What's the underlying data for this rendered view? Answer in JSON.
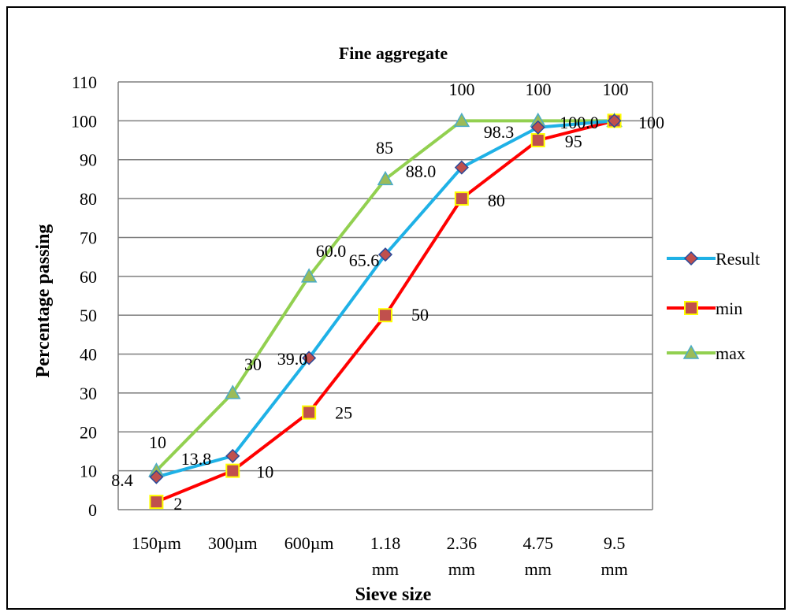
{
  "chart_data": {
    "type": "line",
    "title": "Fine aggregate",
    "xlabel": "Sieve size",
    "ylabel": "Percentage  passing",
    "categories": [
      [
        "150µm"
      ],
      [
        "300µm"
      ],
      [
        "600µm"
      ],
      [
        "1.18",
        "mm"
      ],
      [
        "2.36",
        "mm"
      ],
      [
        "4.75",
        "mm"
      ],
      [
        "9.5",
        "mm"
      ]
    ],
    "ylim": [
      0,
      110
    ],
    "yticks": [
      0,
      10,
      20,
      30,
      40,
      50,
      60,
      70,
      80,
      90,
      100,
      110
    ],
    "grid": true,
    "legend_position": "right",
    "series": [
      {
        "name": "Result",
        "color": "#1fb1e6",
        "marker": "diamond",
        "marker_fill": "#c0504d",
        "marker_stroke": "#2a4a9a",
        "values": [
          8.4,
          13.8,
          39.0,
          65.6,
          88.0,
          98.3,
          100.0
        ],
        "labels": [
          "8.4",
          "13.8",
          "39.0",
          "65.6",
          "88.0",
          "98.3",
          "100.0"
        ]
      },
      {
        "name": "min",
        "color": "#ff0000",
        "marker": "square",
        "marker_fill": "#c0504d",
        "marker_stroke": "#ffff00",
        "values": [
          2,
          10,
          25,
          50,
          80,
          95,
          100
        ],
        "labels": [
          "2",
          "10",
          "25",
          "50",
          "80",
          "95",
          "100"
        ]
      },
      {
        "name": "max",
        "color": "#92d050",
        "marker": "triangle",
        "marker_fill": "#4bacc6",
        "marker_stroke": "#4bacc6",
        "values": [
          10,
          30,
          60,
          85,
          100,
          100,
          100
        ],
        "labels": [
          "10",
          "30",
          "60.0",
          "85",
          "100",
          "100",
          "100"
        ]
      }
    ]
  }
}
